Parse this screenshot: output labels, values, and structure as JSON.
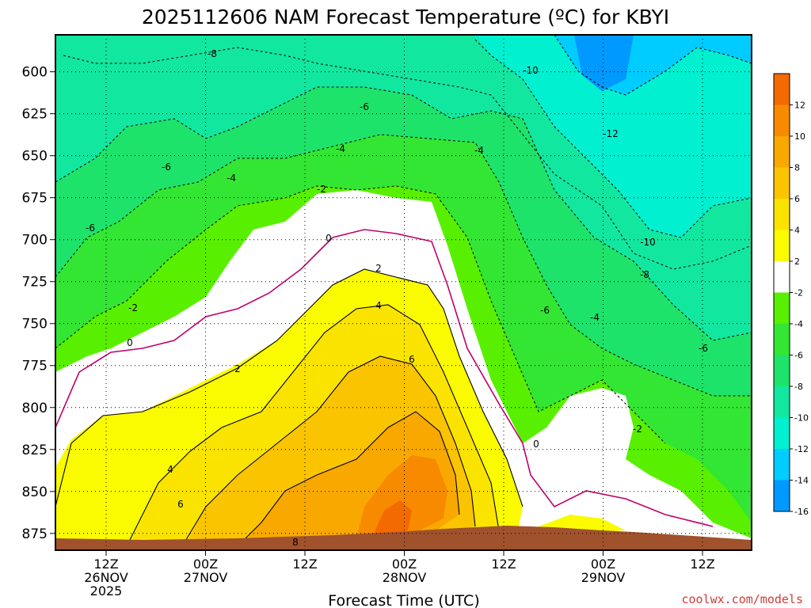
{
  "chart_data": {
    "type": "heatmap",
    "title": "2025112606 NAM Forecast Temperature (ºC) for KBYI",
    "xlabel": "Forecast Time (UTC)",
    "ylabel": "",
    "y_scale": "pressure (hPa), decreasing upward",
    "ylim": [
      885,
      578
    ],
    "y_ticks": [
      600,
      625,
      650,
      675,
      700,
      725,
      750,
      775,
      800,
      825,
      850,
      875
    ],
    "x_ticks": [
      {
        "line1": "12Z",
        "line2": "26NOV",
        "line3": "2025"
      },
      {
        "line1": "00Z",
        "line2": "27NOV",
        "line3": ""
      },
      {
        "line1": "12Z",
        "line2": "",
        "line3": ""
      },
      {
        "line1": "00Z",
        "line2": "28NOV",
        "line3": ""
      },
      {
        "line1": "12Z",
        "line2": "",
        "line3": ""
      },
      {
        "line1": "00Z",
        "line2": "29NOV",
        "line3": ""
      },
      {
        "line1": "12Z",
        "line2": "",
        "line3": ""
      }
    ],
    "grid": true,
    "colorbar": {
      "labels": [
        "12",
        "10",
        "8",
        "6",
        "4",
        "2",
        "-2",
        "-4",
        "-6",
        "-8",
        "-10",
        "-12",
        "-14",
        "-16"
      ],
      "colors": [
        "#f36a00",
        "#f88a00",
        "#f9a800",
        "#fbc400",
        "#fbe300",
        "#fbfb00",
        "#ffffff",
        "#58f000",
        "#33e633",
        "#1ee36a",
        "#12e7a0",
        "#00f0d0",
        "#00ccff",
        "#0099ff"
      ]
    },
    "contour_labels": [
      {
        "text": "-8"
      },
      {
        "text": "-10"
      },
      {
        "text": "-6"
      },
      {
        "text": "-12"
      },
      {
        "text": "-4"
      },
      {
        "text": "-6"
      },
      {
        "text": "-4"
      },
      {
        "text": "-4"
      },
      {
        "text": "-2"
      },
      {
        "text": "-6"
      },
      {
        "text": "-10"
      },
      {
        "text": "0"
      },
      {
        "text": "-8"
      },
      {
        "text": "2"
      },
      {
        "text": "-2"
      },
      {
        "text": "4"
      },
      {
        "text": "-6"
      },
      {
        "text": "-4"
      },
      {
        "text": "0"
      },
      {
        "text": "6"
      },
      {
        "text": "-6"
      },
      {
        "text": "2"
      },
      {
        "text": "-2"
      },
      {
        "text": "0"
      },
      {
        "text": "4"
      },
      {
        "text": "6"
      },
      {
        "text": "8"
      }
    ],
    "terrain_color": "#a0522d"
  },
  "credit": "coolwx.com/models"
}
